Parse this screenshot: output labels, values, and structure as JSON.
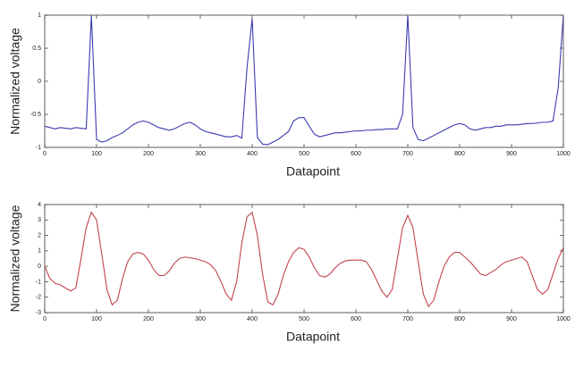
{
  "chart_data": [
    {
      "type": "line",
      "xlabel": "Datapoint",
      "ylabel": "Normalized voltage",
      "xlim": [
        0,
        1000
      ],
      "ylim": [
        -1,
        1
      ],
      "xticks": [
        0,
        100,
        200,
        300,
        400,
        500,
        600,
        700,
        800,
        900,
        1000
      ],
      "yticks": [
        -1,
        -0.5,
        0,
        0.5,
        1
      ],
      "x": [
        0,
        10,
        20,
        30,
        40,
        50,
        60,
        70,
        80,
        90,
        100,
        110,
        120,
        130,
        140,
        150,
        160,
        170,
        180,
        190,
        200,
        210,
        220,
        230,
        240,
        250,
        260,
        270,
        280,
        290,
        300,
        310,
        320,
        330,
        340,
        350,
        360,
        370,
        380,
        390,
        400,
        410,
        420,
        430,
        440,
        450,
        460,
        470,
        480,
        490,
        500,
        510,
        520,
        530,
        540,
        550,
        560,
        570,
        580,
        590,
        600,
        610,
        620,
        630,
        640,
        650,
        660,
        670,
        680,
        690,
        700,
        710,
        720,
        730,
        740,
        750,
        760,
        770,
        780,
        790,
        800,
        810,
        820,
        830,
        840,
        850,
        860,
        870,
        880,
        890,
        900,
        910,
        920,
        930,
        940,
        950,
        960,
        970,
        980,
        990,
        1000
      ],
      "series": [
        {
          "color": "#3b3bb0",
          "values": [
            -0.68,
            -0.7,
            -0.72,
            -0.7,
            -0.71,
            -0.72,
            -0.7,
            -0.71,
            -0.72,
            1.0,
            -0.88,
            -0.92,
            -0.9,
            -0.85,
            -0.82,
            -0.78,
            -0.72,
            -0.66,
            -0.62,
            -0.6,
            -0.62,
            -0.66,
            -0.7,
            -0.72,
            -0.74,
            -0.72,
            -0.68,
            -0.64,
            -0.62,
            -0.66,
            -0.72,
            -0.76,
            -0.78,
            -0.8,
            -0.82,
            -0.84,
            -0.84,
            -0.82,
            -0.86,
            0.2,
            0.95,
            -0.85,
            -0.95,
            -0.96,
            -0.92,
            -0.88,
            -0.82,
            -0.76,
            -0.6,
            -0.55,
            -0.55,
            -0.68,
            -0.8,
            -0.84,
            -0.82,
            -0.8,
            -0.78,
            -0.78,
            -0.77,
            -0.76,
            -0.75,
            -0.75,
            -0.74,
            -0.74,
            -0.73,
            -0.73,
            -0.72,
            -0.72,
            -0.72,
            -0.5,
            1.0,
            -0.7,
            -0.88,
            -0.9,
            -0.86,
            -0.82,
            -0.78,
            -0.74,
            -0.7,
            -0.66,
            -0.64,
            -0.66,
            -0.72,
            -0.74,
            -0.72,
            -0.7,
            -0.7,
            -0.68,
            -0.68,
            -0.66,
            -0.66,
            -0.66,
            -0.65,
            -0.64,
            -0.64,
            -0.63,
            -0.62,
            -0.62,
            -0.6,
            -0.1,
            1.0
          ]
        }
      ]
    },
    {
      "type": "line",
      "xlabel": "Datapoint",
      "ylabel": "Normalized voltage",
      "xlim": [
        0,
        1000
      ],
      "ylim": [
        -3,
        4
      ],
      "xticks": [
        0,
        100,
        200,
        300,
        400,
        500,
        600,
        700,
        800,
        900,
        1000
      ],
      "yticks": [
        -3,
        -2,
        -1,
        0,
        1,
        2,
        3,
        4
      ],
      "x": [
        0,
        10,
        20,
        30,
        40,
        50,
        60,
        70,
        80,
        90,
        100,
        110,
        120,
        130,
        140,
        150,
        160,
        170,
        180,
        190,
        200,
        210,
        220,
        230,
        240,
        250,
        260,
        270,
        280,
        290,
        300,
        310,
        320,
        330,
        340,
        350,
        360,
        370,
        380,
        390,
        400,
        410,
        420,
        430,
        440,
        450,
        460,
        470,
        480,
        490,
        500,
        510,
        520,
        530,
        540,
        550,
        560,
        570,
        580,
        590,
        600,
        610,
        620,
        630,
        640,
        650,
        660,
        670,
        680,
        690,
        700,
        710,
        720,
        730,
        740,
        750,
        760,
        770,
        780,
        790,
        800,
        810,
        820,
        830,
        840,
        850,
        860,
        870,
        880,
        890,
        900,
        910,
        920,
        930,
        940,
        950,
        960,
        970,
        980,
        990,
        1000
      ],
      "series": [
        {
          "color": "#c2434e",
          "values": [
            0,
            -0.8,
            -1.1,
            -1.2,
            -1.4,
            -1.6,
            -1.4,
            0.5,
            2.5,
            3.5,
            3.0,
            0.8,
            -1.5,
            -2.5,
            -2.2,
            -0.8,
            0.3,
            0.8,
            0.9,
            0.8,
            0.4,
            -0.2,
            -0.6,
            -0.6,
            -0.3,
            0.2,
            0.5,
            0.6,
            0.55,
            0.5,
            0.4,
            0.3,
            0.1,
            -0.3,
            -1.0,
            -1.8,
            -2.2,
            -1.0,
            1.5,
            3.2,
            3.5,
            2.0,
            -0.5,
            -2.3,
            -2.5,
            -1.8,
            -0.6,
            0.3,
            0.9,
            1.2,
            1.1,
            0.6,
            -0.1,
            -0.6,
            -0.7,
            -0.5,
            -0.1,
            0.2,
            0.35,
            0.4,
            0.4,
            0.4,
            0.3,
            -0.2,
            -0.9,
            -1.6,
            -2.0,
            -1.5,
            0.5,
            2.5,
            3.3,
            2.5,
            0.3,
            -1.8,
            -2.6,
            -2.2,
            -1.0,
            0.0,
            0.6,
            0.9,
            0.9,
            0.6,
            0.3,
            -0.1,
            -0.5,
            -0.6,
            -0.4,
            -0.2,
            0.1,
            0.3,
            0.4,
            0.5,
            0.6,
            0.3,
            -0.6,
            -1.5,
            -1.8,
            -1.5,
            -0.5,
            0.5,
            1.2
          ]
        }
      ]
    }
  ]
}
